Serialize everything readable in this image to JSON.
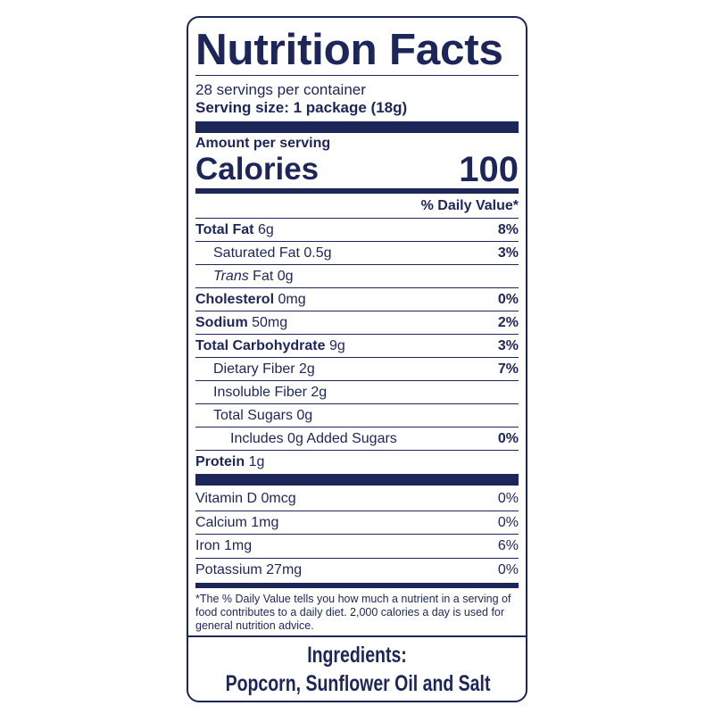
{
  "title": "Nutrition Facts",
  "servings_per_container": "28 servings per container",
  "serving_size": "Serving size: 1 package (18g)",
  "amount_per_serving": "Amount per serving",
  "calories_label": "Calories",
  "calories_value": "100",
  "daily_value_header": "% Daily Value*",
  "nutrients": [
    {
      "name": "Total Fat",
      "amount": "6g",
      "dv": "8%"
    },
    {
      "name": "Saturated Fat",
      "amount": "0.5g",
      "dv": "3%"
    },
    {
      "name": "Trans",
      "name_rest": "Fat",
      "amount": "0g",
      "dv": ""
    },
    {
      "name": "Cholesterol",
      "amount": "0mg",
      "dv": "0%"
    },
    {
      "name": "Sodium",
      "amount": "50mg",
      "dv": "2%"
    },
    {
      "name": "Total Carbohydrate",
      "amount": "9g",
      "dv": "3%"
    },
    {
      "name": "Dietary Fiber",
      "amount": "2g",
      "dv": "7%"
    },
    {
      "name": "Insoluble Fiber",
      "amount": "2g",
      "dv": ""
    },
    {
      "name": "Total Sugars",
      "amount": "0g",
      "dv": ""
    },
    {
      "name": "Includes 0g Added Sugars",
      "amount": "",
      "dv": "0%"
    },
    {
      "name": "Protein",
      "amount": "1g",
      "dv": ""
    }
  ],
  "vitamins": [
    {
      "label": "Vitamin D 0mcg",
      "dv": "0%"
    },
    {
      "label": "Calcium 1mg",
      "dv": "0%"
    },
    {
      "label": "Iron 1mg",
      "dv": "6%"
    },
    {
      "label": "Potassium 27mg",
      "dv": "0%"
    }
  ],
  "footnote": "*The % Daily Value tells you how much a nutrient in a serving of food contributes to a daily diet. 2,000 calories a day is used for general nutrition advice.",
  "ingredients_heading": "Ingredients:",
  "ingredients": "Popcorn, Sunflower Oil and Salt",
  "colors": {
    "ink": "#1c2658"
  }
}
